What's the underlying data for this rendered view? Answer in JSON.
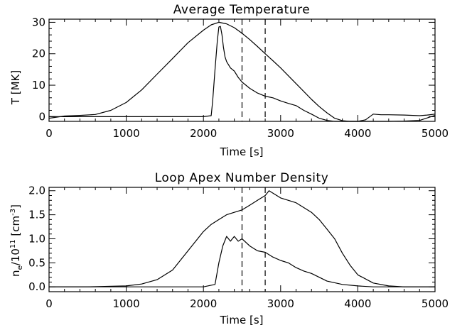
{
  "chart_data": [
    {
      "type": "line",
      "title": "Average Temperature",
      "xlabel": "Time [s]",
      "ylabel": "T [MK]",
      "xlim": [
        0,
        5000
      ],
      "ylim": [
        -1.5,
        31
      ],
      "x_ticks": [
        "0",
        "1000",
        "2000",
        "3000",
        "4000",
        "5000"
      ],
      "y_ticks": [
        "0",
        "10",
        "20",
        "30"
      ],
      "vertical_lines": [
        2500,
        2800
      ],
      "series": [
        {
          "x": [
            0,
            200,
            400,
            600,
            800,
            1000,
            1200,
            1400,
            1600,
            1800,
            2000,
            2100,
            2200,
            2300,
            2400,
            2500,
            2600,
            2700,
            2800,
            2900,
            3000,
            3100,
            3200,
            3300,
            3400,
            3500,
            3600,
            3700,
            3800,
            3900,
            4000,
            4200,
            4400,
            4600,
            4800,
            5000
          ],
          "values": [
            -0.5,
            0.2,
            0.4,
            0.7,
            2.0,
            4.5,
            8.5,
            13.5,
            18.5,
            23.5,
            27.5,
            29.2,
            30.0,
            29.5,
            28.3,
            26.5,
            24.5,
            22.3,
            20.0,
            17.8,
            15.5,
            13.0,
            10.5,
            8.0,
            5.5,
            3.2,
            1.2,
            -0.5,
            -1.3,
            -1.5,
            -1.5,
            -1.5,
            -1.5,
            -1.4,
            -1.2,
            0.4
          ]
        },
        {
          "x": [
            0,
            500,
            1000,
            1500,
            2000,
            2100,
            2120,
            2150,
            2180,
            2200,
            2220,
            2240,
            2260,
            2280,
            2300,
            2350,
            2400,
            2450,
            2500,
            2550,
            2600,
            2700,
            2800,
            2900,
            3000,
            3100,
            3200,
            3300,
            3400,
            3500,
            3600,
            3700,
            3800,
            3900,
            4000,
            4100,
            4200,
            4300,
            4400,
            4600,
            4800,
            4900,
            5000
          ],
          "values": [
            0.0,
            0.0,
            0.0,
            0.0,
            0.0,
            0.3,
            5.0,
            15.0,
            24.0,
            28.5,
            28.7,
            26.0,
            22.0,
            19.0,
            17.5,
            15.5,
            14.5,
            12.5,
            11.0,
            10.0,
            9.0,
            7.5,
            6.5,
            6.0,
            5.0,
            4.2,
            3.5,
            2.0,
            0.8,
            -0.5,
            -1.2,
            -1.5,
            -1.5,
            -1.5,
            -1.5,
            -1.0,
            0.8,
            0.6,
            0.6,
            0.5,
            0.3,
            0.5,
            0.8
          ]
        }
      ]
    },
    {
      "type": "line",
      "title": "Loop Apex Number Density",
      "xlabel": "Time [s]",
      "ylabel": "n_e/10^11 [cm^-3]",
      "xlim": [
        0,
        5000
      ],
      "ylim": [
        -0.1,
        2.07
      ],
      "x_ticks": [
        "0",
        "1000",
        "2000",
        "3000",
        "4000",
        "5000"
      ],
      "y_ticks": [
        "0.0",
        "0.5",
        "1.0",
        "1.5",
        "2.0"
      ],
      "vertical_lines": [
        2500,
        2800
      ],
      "series": [
        {
          "x": [
            0,
            500,
            1000,
            1200,
            1400,
            1600,
            1700,
            1800,
            1900,
            2000,
            2100,
            2200,
            2300,
            2400,
            2500,
            2600,
            2700,
            2800,
            2850,
            2900,
            3000,
            3100,
            3200,
            3300,
            3400,
            3500,
            3600,
            3700,
            3800,
            3900,
            4000,
            4200,
            4400,
            4600,
            5000
          ],
          "values": [
            0.0,
            0.0,
            0.02,
            0.06,
            0.15,
            0.35,
            0.55,
            0.75,
            0.95,
            1.15,
            1.3,
            1.4,
            1.5,
            1.55,
            1.6,
            1.7,
            1.8,
            1.9,
            2.0,
            1.95,
            1.85,
            1.8,
            1.75,
            1.65,
            1.55,
            1.4,
            1.2,
            1.0,
            0.7,
            0.45,
            0.25,
            0.08,
            0.02,
            0.0,
            0.0
          ]
        },
        {
          "x": [
            0,
            1000,
            2000,
            2150,
            2200,
            2250,
            2300,
            2350,
            2400,
            2450,
            2500,
            2600,
            2700,
            2800,
            2900,
            3000,
            3100,
            3200,
            3300,
            3400,
            3500,
            3600,
            3800,
            4000,
            4200,
            5000
          ],
          "values": [
            0.0,
            0.0,
            0.0,
            0.05,
            0.5,
            0.85,
            1.05,
            0.95,
            1.05,
            0.95,
            1.0,
            0.85,
            0.75,
            0.72,
            0.62,
            0.55,
            0.5,
            0.4,
            0.33,
            0.28,
            0.2,
            0.12,
            0.05,
            0.02,
            0.0,
            0.0
          ]
        }
      ]
    }
  ]
}
